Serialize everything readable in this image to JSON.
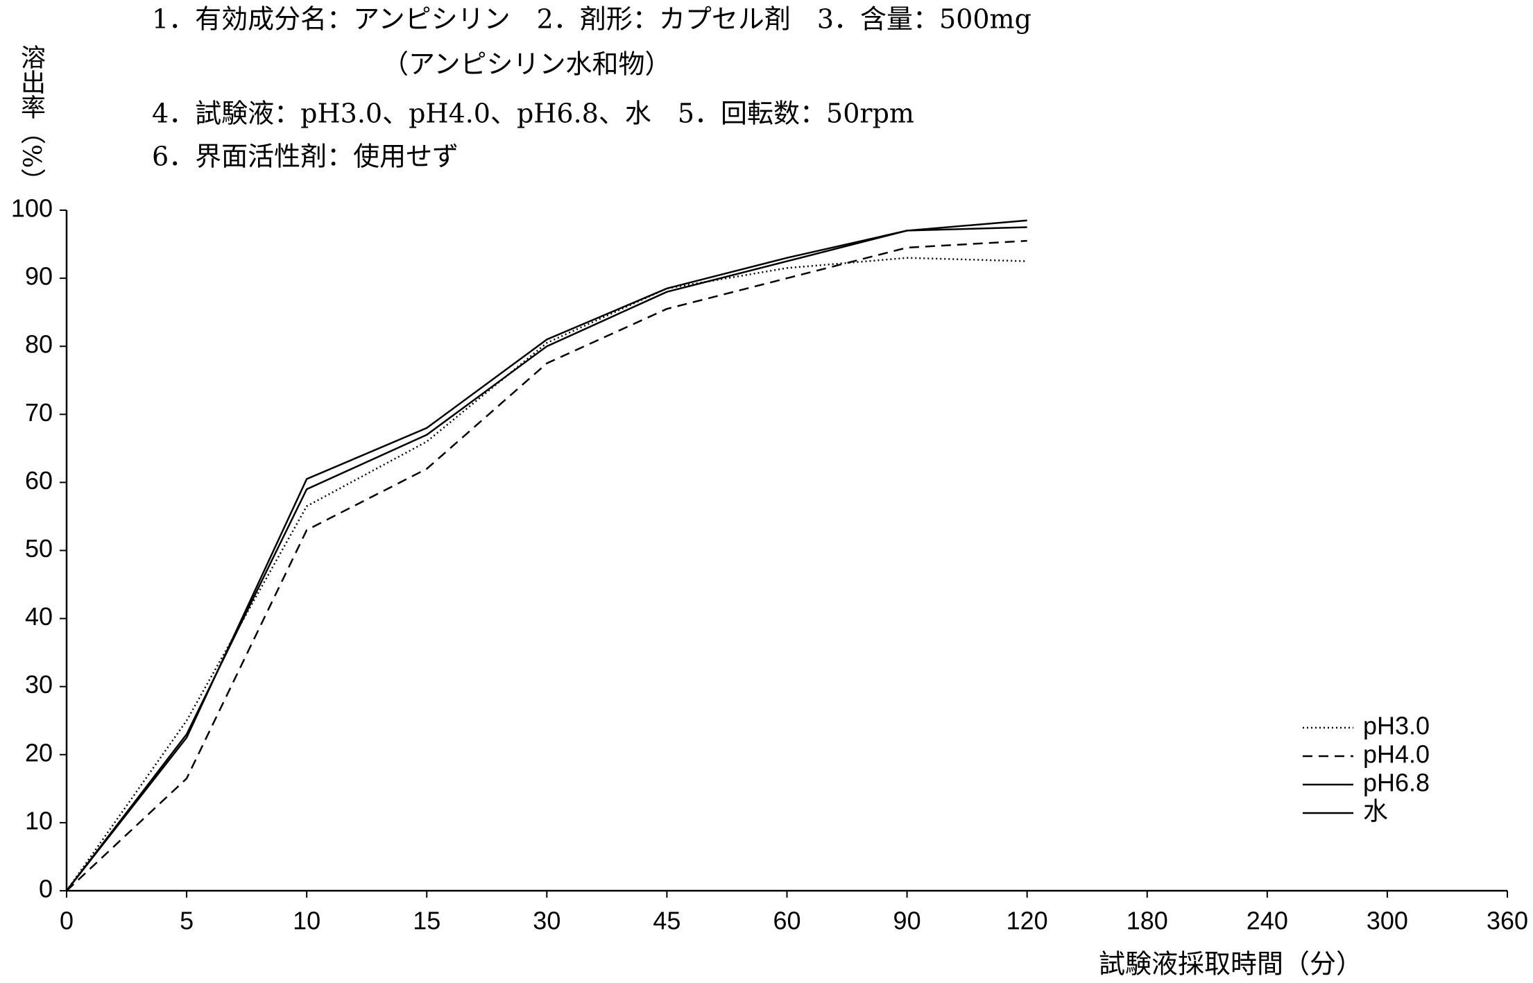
{
  "chart_data": {
    "type": "line",
    "annotations": [
      "1．有効成分名：アンピシリン　2．剤形：カプセル剤　3．含量：500mg",
      "（アンピシリン水和物）",
      "4．試験液：pH3.0、pH4.0、pH6.8、水　5．回転数：50rpm",
      "6．界面活性剤：使用せず"
    ],
    "y_label": "溶出率（%）",
    "x_label": "試験液採取時間（分）",
    "categories": [
      "0",
      "5",
      "10",
      "15",
      "30",
      "45",
      "60",
      "90",
      "120",
      "180",
      "240",
      "300",
      "360"
    ],
    "series": [
      {
        "name": "pH3.0",
        "color": "#000000",
        "style": "dotted",
        "values": [
          0,
          25,
          56.5,
          66,
          80.5,
          88.5,
          91.5,
          93,
          92.5,
          null,
          null,
          null,
          null
        ]
      },
      {
        "name": "pH4.0",
        "color": "#000000",
        "style": "dashed",
        "values": [
          0,
          16.5,
          53,
          62,
          77.5,
          85.5,
          90,
          94.5,
          95.5,
          null,
          null,
          null,
          null
        ]
      },
      {
        "name": "pH6.8",
        "color": "#000000",
        "style": "solid",
        "values": [
          0,
          23,
          59,
          67,
          80,
          88,
          92.5,
          97,
          98.5,
          null,
          null,
          null,
          null
        ]
      },
      {
        "name": "水",
        "color": "#000000",
        "style": "solid",
        "values": [
          0,
          22.5,
          60.5,
          68,
          81,
          88.5,
          93,
          97,
          97.5,
          null,
          null,
          null,
          null
        ]
      }
    ],
    "ylim": [
      0,
      100
    ],
    "yticks": [
      0,
      10,
      20,
      30,
      40,
      50,
      60,
      70,
      80,
      90,
      100
    ],
    "grid": false,
    "legend": "lower right"
  }
}
